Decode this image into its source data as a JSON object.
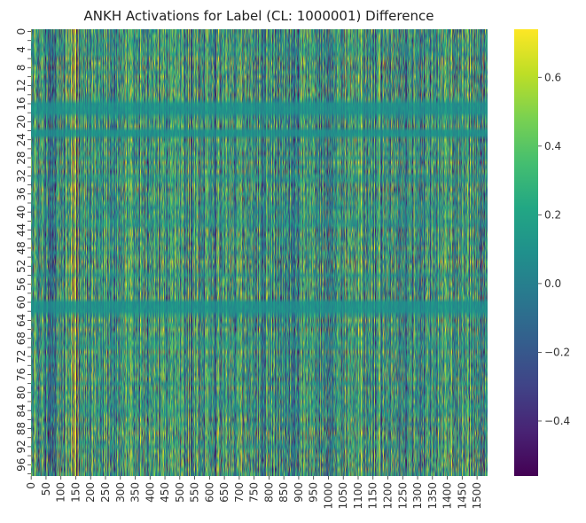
{
  "chart_data": {
    "type": "heatmap",
    "title": "ANKH Activations for Label (CL: 1000001) Difference",
    "xlabel": "",
    "ylabel": "",
    "rows": 99,
    "cols": 1536,
    "x_tick_labels": [
      "0",
      "50",
      "100",
      "150",
      "200",
      "250",
      "300",
      "350",
      "400",
      "450",
      "500",
      "550",
      "600",
      "650",
      "700",
      "750",
      "800",
      "850",
      "900",
      "950",
      "1000",
      "1050",
      "1100",
      "1150",
      "1200",
      "1250",
      "1300",
      "1350",
      "1400",
      "1450",
      "1500"
    ],
    "y_tick_labels": [
      "0",
      "4",
      "8",
      "12",
      "16",
      "20",
      "24",
      "28",
      "32",
      "36",
      "40",
      "44",
      "48",
      "52",
      "56",
      "60",
      "64",
      "68",
      "72",
      "76",
      "80",
      "84",
      "88",
      "92",
      "96"
    ],
    "colorbar": {
      "colormap": "viridis",
      "vmin": -0.56,
      "vmax": 0.74,
      "ticks": [
        "0.6",
        "0.4",
        "0.2",
        "0.0",
        "−0.2",
        "−0.4"
      ],
      "tick_values": [
        0.6,
        0.4,
        0.2,
        0.0,
        -0.2,
        -0.4
      ]
    },
    "colors": {
      "low": "#440154",
      "mid": "#21918c",
      "high": "#fde725"
    }
  }
}
